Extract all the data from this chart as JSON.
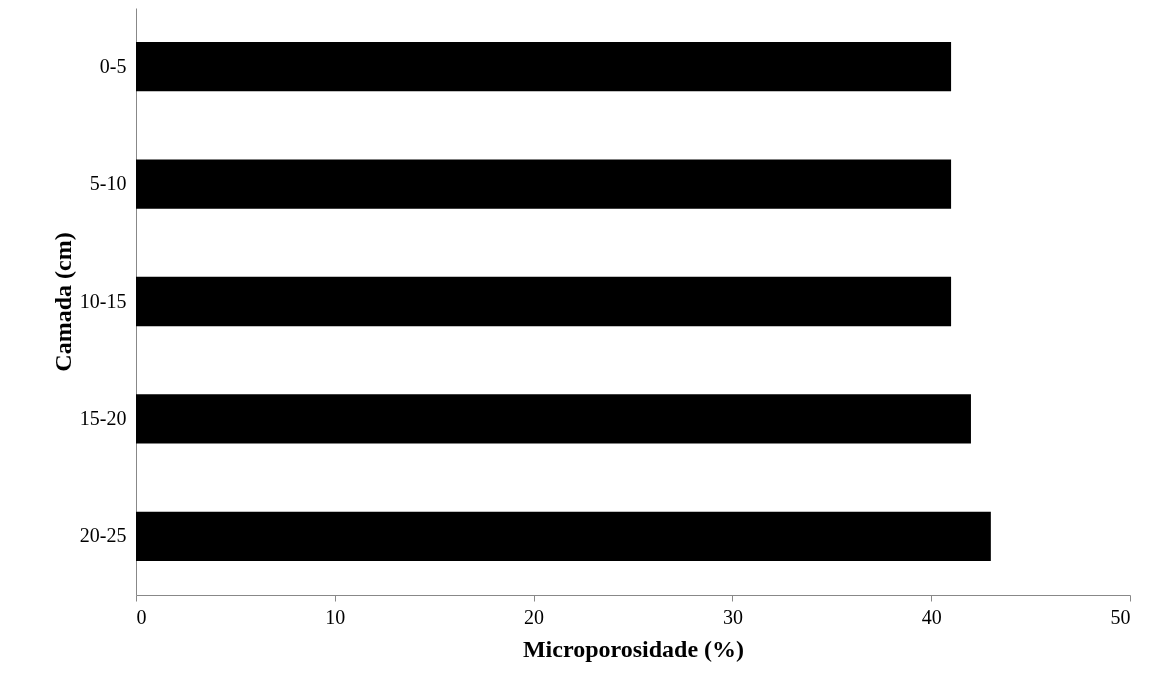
{
  "chart_data": {
    "type": "bar",
    "orientation": "horizontal",
    "xlabel": "Microporosidade (%)",
    "ylabel": "Camada (cm)",
    "categories": [
      "0-5",
      "5-10",
      "10-15",
      "15-20",
      "20-25"
    ],
    "values": [
      41,
      41,
      41,
      42,
      43
    ],
    "color": "#000000",
    "xlim": [
      0,
      50
    ],
    "xticks": [
      0,
      10,
      20,
      30,
      40,
      50
    ],
    "grid": false
  }
}
